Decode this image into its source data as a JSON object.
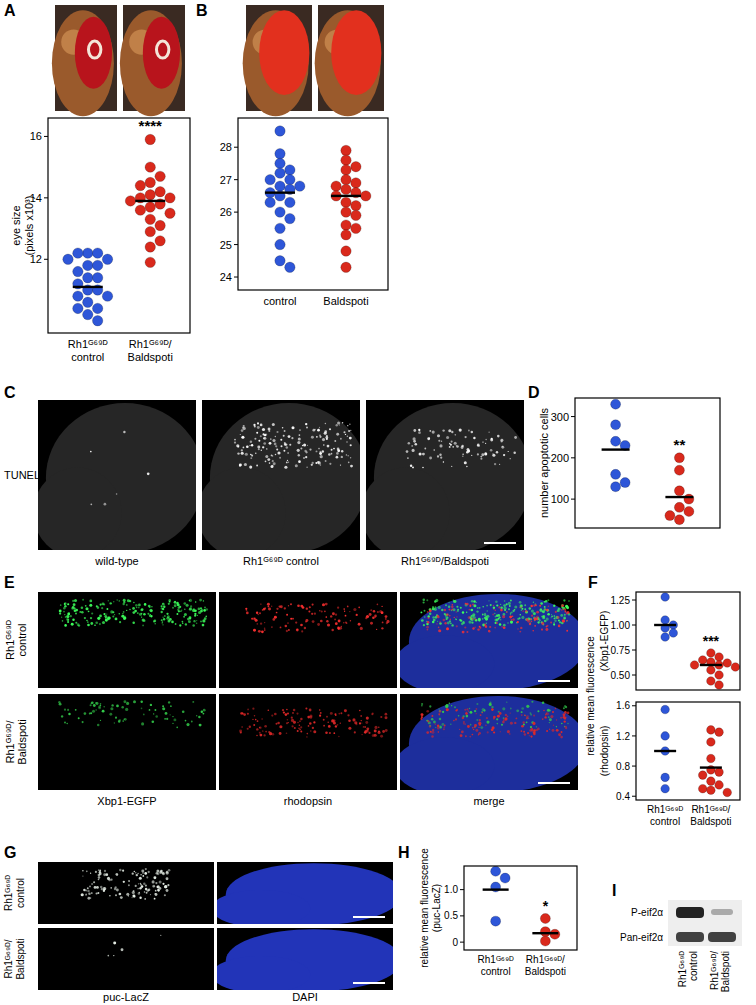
{
  "chart_data": [
    {
      "type": "strip",
      "ylabel": "eye size (pixels x10³)",
      "categories": [
        "Rh1ᴳ⁶⁹ᴰ control",
        "Rh1ᴳ⁶⁹ᴰ/Baldspoti"
      ],
      "colors": [
        "#2e56d8",
        "#d9291c"
      ],
      "values": [
        [
          12.2,
          12.2,
          12.2,
          12.0,
          12.0,
          11.8,
          11.8,
          11.6,
          11.4,
          11.4,
          11.2,
          11.0,
          11.0,
          10.8,
          10.8,
          10.6,
          10.4,
          10.4,
          10.2,
          10.0
        ],
        [
          15.9,
          15.0,
          14.7,
          14.5,
          14.4,
          14.2,
          14.1,
          14.0,
          14.0,
          13.9,
          13.8,
          13.7,
          13.6,
          13.5,
          13.3,
          13.1,
          12.9,
          12.6,
          12.4,
          11.9
        ]
      ],
      "means": [
        11.1,
        13.9
      ],
      "annotation": "****",
      "ylim": [
        9.6,
        16.6
      ],
      "yticks": [
        12,
        14,
        16
      ],
      "grid": false
    },
    {
      "type": "strip",
      "categories": [
        "control",
        "Baldspoti"
      ],
      "colors": [
        "#2e56d8",
        "#d9291c"
      ],
      "values": [
        [
          28.5,
          27.8,
          27.5,
          27.3,
          27.2,
          27.0,
          27.0,
          26.8,
          26.8,
          26.7,
          26.6,
          26.5,
          26.3,
          26.3,
          26.0,
          25.8,
          25.5,
          25.0,
          24.5,
          24.3
        ],
        [
          27.9,
          27.6,
          27.4,
          27.3,
          27.0,
          26.9,
          26.8,
          26.7,
          26.6,
          26.5,
          26.5,
          26.3,
          26.2,
          26.0,
          25.9,
          25.6,
          25.5,
          25.3,
          24.8,
          24.3
        ]
      ],
      "means": [
        26.6,
        26.5
      ],
      "ylim": [
        23.6,
        28.9
      ],
      "yticks": [
        24,
        25,
        26,
        27,
        28
      ],
      "grid": false
    },
    {
      "type": "strip",
      "ylabel": "number apoptotic cells",
      "categories": [
        null,
        null
      ],
      "colors": [
        "#2e56d8",
        "#d9291c"
      ],
      "values": [
        [
          330,
          280,
          240,
          230,
          160,
          140,
          130
        ],
        [
          200,
          170,
          120,
          100,
          80,
          70,
          60,
          50
        ]
      ],
      "means": [
        220,
        105
      ],
      "annotation": "**",
      "ylim": [
        30,
        345
      ],
      "yticks": [
        100,
        200,
        300
      ],
      "grid": false
    },
    {
      "type": "strip",
      "ylabel": "(Xbp1-EGFP)",
      "categories": [
        null,
        null
      ],
      "colors": [
        "#2e56d8",
        "#d9291c"
      ],
      "values": [
        [
          1.28,
          1.05,
          1.0,
          0.97,
          0.92,
          0.88
        ],
        [
          0.72,
          0.68,
          0.65,
          0.63,
          0.62,
          0.6,
          0.6,
          0.58,
          0.55,
          0.5,
          0.44,
          0.4
        ]
      ],
      "means": [
        1.0,
        0.6
      ],
      "annotation": "***",
      "ylim": [
        0.35,
        1.33
      ],
      "yticks": [
        {
          "value": 0.5,
          "label": "0.50"
        },
        0.75,
        {
          "value": 1,
          "label": "1.00"
        },
        1.25
      ],
      "grid": false
    },
    {
      "type": "strip",
      "ylabel": "(rhodopsin)",
      "categories": [
        "Rh1ᴳ⁶⁹ᴰ control",
        "Rh1ᴳ⁶⁹ᴰ/Baldspoti"
      ],
      "colors": [
        "#2e56d8",
        "#d9291c"
      ],
      "values": [
        [
          1.55,
          1.2,
          1.0,
          0.65,
          0.5
        ],
        [
          1.28,
          1.25,
          1.12,
          0.9,
          0.75,
          0.72,
          0.68,
          0.6,
          0.55,
          0.5,
          0.48,
          0.45
        ]
      ],
      "means": [
        1.0,
        0.78
      ],
      "ylim": [
        0.35,
        1.65
      ],
      "yticks": [
        0.4,
        0.8,
        1.2,
        1.6
      ],
      "grid": false
    },
    {
      "type": "strip",
      "ylabel": "relative mean fluorescence (puc-LacZ)",
      "categories": [
        "Rh1ᴳ⁶⁹ᴰ control",
        "Rh1ᴳ⁶⁹ᴰ/Baldspoti"
      ],
      "colors": [
        "#2e56d8",
        "#d9291c"
      ],
      "values": [
        [
          1.35,
          1.22,
          1.05,
          0.4
        ],
        [
          0.45,
          0.2,
          0.15,
          0.02
        ]
      ],
      "means": [
        1.0,
        0.17
      ],
      "annotation": "*",
      "ylim": [
        -0.15,
        1.45
      ],
      "yticks": [
        0,
        0.5,
        {
          "value": 1,
          "label": "1.0"
        }
      ],
      "grid": false
    }
  ],
  "shared_ylabel": "relative mean fluorescence",
  "panel_letters": [
    "A",
    "B",
    "C",
    "D",
    "E",
    "F",
    "G",
    "H",
    "I"
  ],
  "images": {
    "C": {
      "row_label": "TUNEL",
      "captions": [
        "wild-type",
        "Rh1ᴳ⁶⁹ᴰ control",
        "Rh1ᴳ⁶⁹ᴰ/Baldspoti"
      ]
    },
    "E": {
      "row_labels": [
        "Rh1ᴳ⁶⁹ᴰ control",
        "Rh1ᴳ⁶⁹ᴰ/Baldspoti"
      ],
      "captions": [
        "Xbp1-EGFP",
        "rhodopsin",
        "merge"
      ]
    },
    "G": {
      "row_labels": [
        "Rh1ᴳ⁶⁹ᴰ control",
        "Rh1ᴳ⁶⁹ᴰ/Baldspoti"
      ],
      "captions": [
        "puc-LacZ",
        "DAPI"
      ]
    }
  },
  "blot": {
    "rows": [
      "P-eif2α",
      "Pan-eif2α"
    ],
    "lanes": [
      "Rh1ᴳ⁶⁹ᴰ control",
      "Rh1ᴳ⁶⁹ᴰ/Baldspoti"
    ]
  }
}
